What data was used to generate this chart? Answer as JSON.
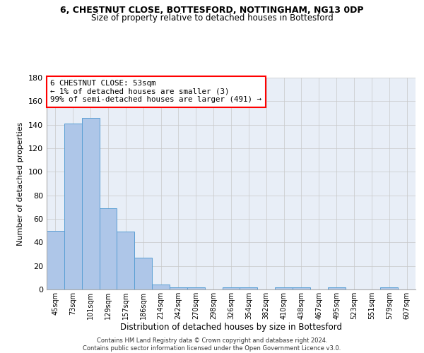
{
  "title_line1": "6, CHESTNUT CLOSE, BOTTESFORD, NOTTINGHAM, NG13 0DP",
  "title_line2": "Size of property relative to detached houses in Bottesford",
  "xlabel": "Distribution of detached houses by size in Bottesford",
  "ylabel": "Number of detached properties",
  "bar_color": "#aec6e8",
  "bar_edge_color": "#5a9fd4",
  "background_color": "#e8eef7",
  "categories": [
    "45sqm",
    "73sqm",
    "101sqm",
    "129sqm",
    "157sqm",
    "186sqm",
    "214sqm",
    "242sqm",
    "270sqm",
    "298sqm",
    "326sqm",
    "354sqm",
    "382sqm",
    "410sqm",
    "438sqm",
    "467sqm",
    "495sqm",
    "523sqm",
    "551sqm",
    "579sqm",
    "607sqm"
  ],
  "values": [
    50,
    141,
    146,
    69,
    49,
    27,
    4,
    2,
    2,
    0,
    2,
    2,
    0,
    2,
    2,
    0,
    2,
    0,
    0,
    2,
    0
  ],
  "ylim": [
    0,
    180
  ],
  "yticks": [
    0,
    20,
    40,
    60,
    80,
    100,
    120,
    140,
    160,
    180
  ],
  "annotation_box_text": "6 CHESTNUT CLOSE: 53sqm\n← 1% of detached houses are smaller (3)\n99% of semi-detached houses are larger (491) →",
  "footer_line1": "Contains HM Land Registry data © Crown copyright and database right 2024.",
  "footer_line2": "Contains public sector information licensed under the Open Government Licence v3.0.",
  "grid_color": "#c8c8c8"
}
